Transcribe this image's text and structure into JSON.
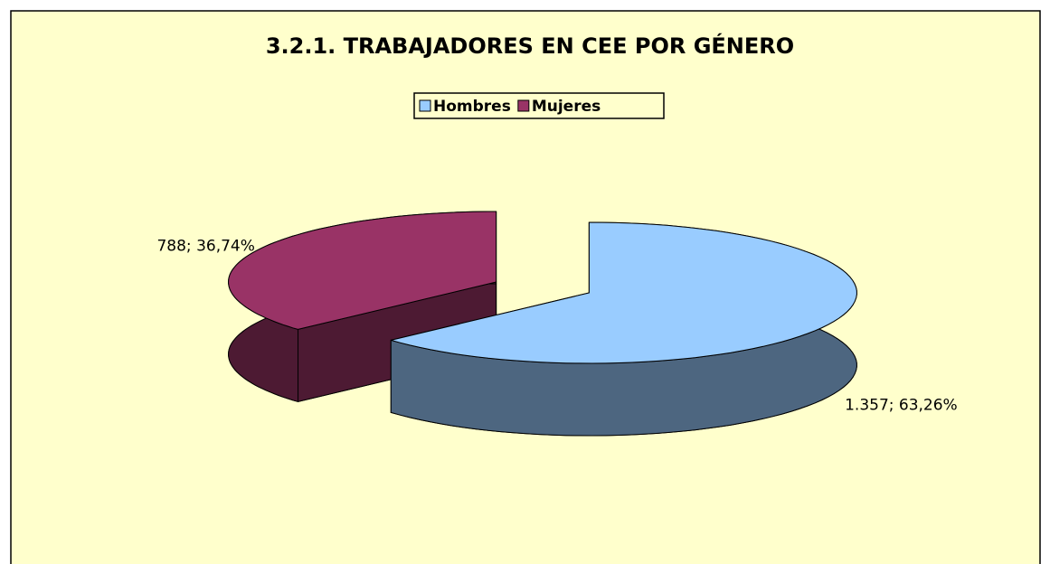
{
  "chart_data": {
    "type": "pie",
    "title": "3.2.1. TRABAJADORES EN CEE POR GÉNERO",
    "categories": [
      "Hombres",
      "Mujeres"
    ],
    "values": [
      1357,
      788
    ],
    "value_labels": [
      "1.357; 63,26%",
      "788; 36,74%"
    ],
    "colors": [
      "#99ccff",
      "#993366"
    ],
    "legend": "top"
  }
}
